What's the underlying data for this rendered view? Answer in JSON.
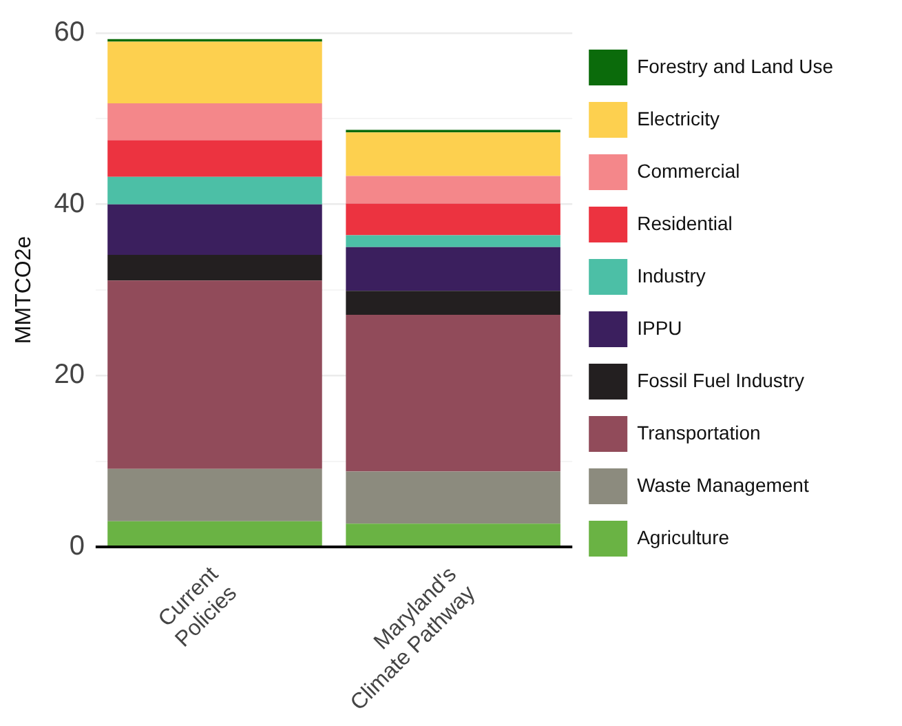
{
  "chart_data": {
    "type": "bar",
    "stacked": true,
    "ylabel": "MMTCO2e",
    "categories": [
      "Current Policies",
      "Maryland's Climate Pathway"
    ],
    "series": [
      {
        "name": "Agriculture",
        "color": "#6ab344",
        "values": [
          3.0,
          2.7
        ]
      },
      {
        "name": "Waste Management",
        "color": "#8c8b7e",
        "values": [
          6.1,
          6.1
        ]
      },
      {
        "name": "Transportation",
        "color": "#914b5a",
        "values": [
          22.0,
          18.3
        ]
      },
      {
        "name": "Fossil Fuel Industry",
        "color": "#231f20",
        "values": [
          3.0,
          2.8
        ]
      },
      {
        "name": "IPPU",
        "color": "#3b1f5e",
        "values": [
          5.9,
          5.1
        ]
      },
      {
        "name": "Industry",
        "color": "#4cbfa6",
        "values": [
          3.2,
          1.4
        ]
      },
      {
        "name": "Residential",
        "color": "#ec3340",
        "values": [
          4.3,
          3.7
        ]
      },
      {
        "name": "Commercial",
        "color": "#f4878a",
        "values": [
          4.3,
          3.2
        ]
      },
      {
        "name": "Electricity",
        "color": "#fdd04f",
        "values": [
          7.2,
          5.1
        ]
      },
      {
        "name": "Forestry and Land Use",
        "color": "#0b6b0b",
        "values": [
          0.3,
          0.3
        ]
      }
    ],
    "ylim": [
      0,
      60
    ],
    "yticks": [
      0,
      {
        "value": 10,
        "label": null
      },
      20,
      {
        "value": 30,
        "label": null
      },
      40,
      {
        "value": 50,
        "label": null
      },
      60
    ],
    "grid": "y",
    "legend": "right"
  }
}
